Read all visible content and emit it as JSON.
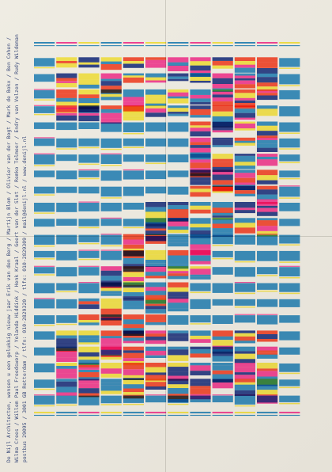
{
  "poster": {
    "credit_line_1": "De Nijl Architecten, wensen u een gelukkig nieuw jaar  Erik van den Berg / Martijn Blom / Olivier van der Bogt / Mark de Bokx / Ben Cohen /",
    "credit_line_2": "Wilma Crees / Willem Paul Freedsworp / Yolanda Hiddink / Henk Kraal / Geert van der Slot / Remko Tolmeer / Endry van Velzen / Rudy Wildeman",
    "credit_line_3": "postbus 29095 / 3001 GB Rotterdam / tlfn: 010-2829320 / tlfx: 010-2829309 / mail@denijl.nl / www.denijl.nl"
  },
  "colors": {
    "paper": "#ebe8df",
    "cyan": "#2f8fcc",
    "magenta": "#ff3fa0",
    "yellow": "#fff04a",
    "navy": "#253a8f",
    "red": "#ff4b2e"
  }
}
